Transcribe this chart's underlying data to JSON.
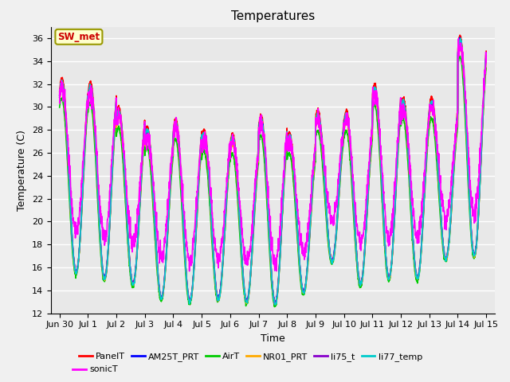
{
  "title": "Temperatures",
  "xlabel": "Time",
  "ylabel": "Temperature (C)",
  "ylim": [
    12,
    37
  ],
  "annotation_text": "SW_met",
  "annotation_color": "#cc0000",
  "annotation_bg": "#ffffcc",
  "annotation_border": "#999900",
  "series_names": [
    "PanelT",
    "AM25T_PRT",
    "AirT",
    "NR01_PRT",
    "li75_t",
    "li77_temp",
    "sonicT"
  ],
  "series_colors": [
    "#ff0000",
    "#0000ff",
    "#00cc00",
    "#ffaa00",
    "#8800cc",
    "#00cccc",
    "#ff00ff"
  ],
  "tick_positions": [
    0,
    1,
    2,
    3,
    4,
    5,
    6,
    7,
    8,
    9,
    10,
    11,
    12,
    13,
    14,
    15
  ],
  "tick_labels": [
    "Jun 30",
    "Jul 1",
    "Jul 2",
    "Jul 3",
    "Jul 4",
    "Jul 5",
    "Jul 6",
    "Jul 7",
    "Jul 8",
    "Jul 9",
    "Jul 10",
    "Jul 11",
    "Jul 12",
    "Jul 13",
    "Jul 14",
    "Jul 15"
  ],
  "ax_bg_color": "#e8e8e8",
  "fig_bg_color": "#f0f0f0",
  "grid_color": "#ffffff",
  "daily_peaks_panel": [
    32.5,
    32.2,
    30.0,
    28.3,
    29.0,
    28.0,
    27.7,
    29.3,
    27.8,
    29.7,
    29.7,
    32.0,
    30.8,
    30.8,
    36.2
  ],
  "daily_mins_panel": [
    15.5,
    15.0,
    14.5,
    13.3,
    13.0,
    13.2,
    13.0,
    12.8,
    13.8,
    16.5,
    14.5,
    15.0,
    15.0,
    16.7,
    17.0
  ],
  "lw": 1.2
}
